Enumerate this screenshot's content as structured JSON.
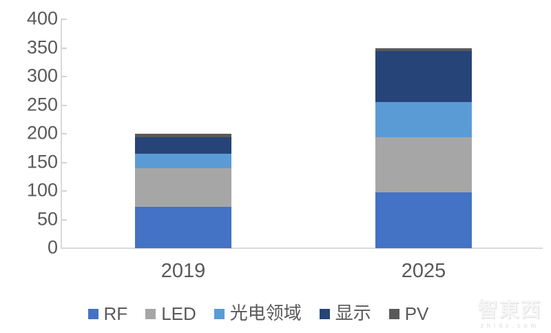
{
  "chart_data": {
    "type": "bar",
    "stacked": true,
    "title": "",
    "xlabel": "",
    "ylabel": "",
    "categories": [
      "2019",
      "2025"
    ],
    "series": [
      {
        "name": "RF",
        "color": "#4472C4",
        "values": [
          72,
          98
        ]
      },
      {
        "name": "LED",
        "color": "#A6A6A6",
        "values": [
          68,
          96
        ]
      },
      {
        "name": "光电领域",
        "color": "#5B9BD5",
        "values": [
          25,
          62
        ]
      },
      {
        "name": "显示",
        "color": "#264478",
        "values": [
          29,
          89
        ]
      },
      {
        "name": "PV",
        "color": "#595959",
        "values": [
          6,
          5
        ]
      }
    ],
    "totals_estimated": [
      200,
      350
    ],
    "ylim": [
      0,
      400
    ],
    "y_tick_step": 50,
    "y_ticks": [
      "400",
      "350",
      "300",
      "250",
      "200",
      "150",
      "100",
      "50",
      "0"
    ],
    "grid": false,
    "legend_position": "bottom"
  },
  "axis_style": {
    "line_color": "#D9D9D9",
    "tick_color": "#D2D2D2",
    "label_color": "#595959"
  },
  "watermark": {
    "logo_text": "智東西",
    "domain_text": "zhidx.com"
  }
}
